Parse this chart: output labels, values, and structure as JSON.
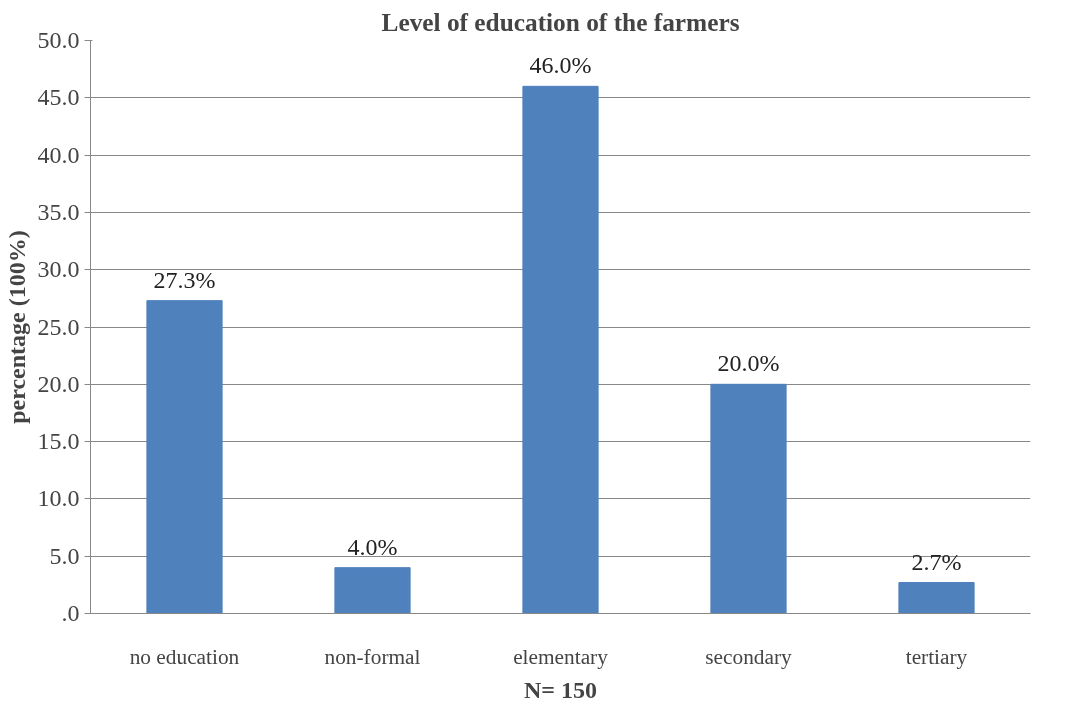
{
  "chart_data": {
    "type": "bar",
    "title": "Level of education of the farmers",
    "xlabel": "N= 150",
    "ylabel": "percentage (100%)",
    "categories": [
      "no education",
      "non-formal",
      "elementary",
      "secondary",
      "tertiary"
    ],
    "values": [
      27.3,
      4.0,
      46.0,
      20.0,
      2.7
    ],
    "value_labels": [
      "27.3%",
      "4.0%",
      "46.0%",
      "20.0%",
      "2.7%"
    ],
    "color": "#4f81bd",
    "ylim": [
      0,
      50
    ],
    "yticks": [
      {
        "value": 0,
        "label": ".0"
      },
      {
        "value": 5,
        "label": "5.0"
      },
      {
        "value": 10,
        "label": "10.0"
      },
      {
        "value": 15,
        "label": "15.0"
      },
      {
        "value": 20,
        "label": "20.0"
      },
      {
        "value": 25,
        "label": "25.0"
      },
      {
        "value": 30,
        "label": "30.0"
      },
      {
        "value": 35,
        "label": "35.0"
      },
      {
        "value": 40,
        "label": "40.0"
      },
      {
        "value": 45,
        "label": "45.0"
      },
      {
        "value": 50,
        "label": "50.0"
      }
    ],
    "grid": "y"
  }
}
